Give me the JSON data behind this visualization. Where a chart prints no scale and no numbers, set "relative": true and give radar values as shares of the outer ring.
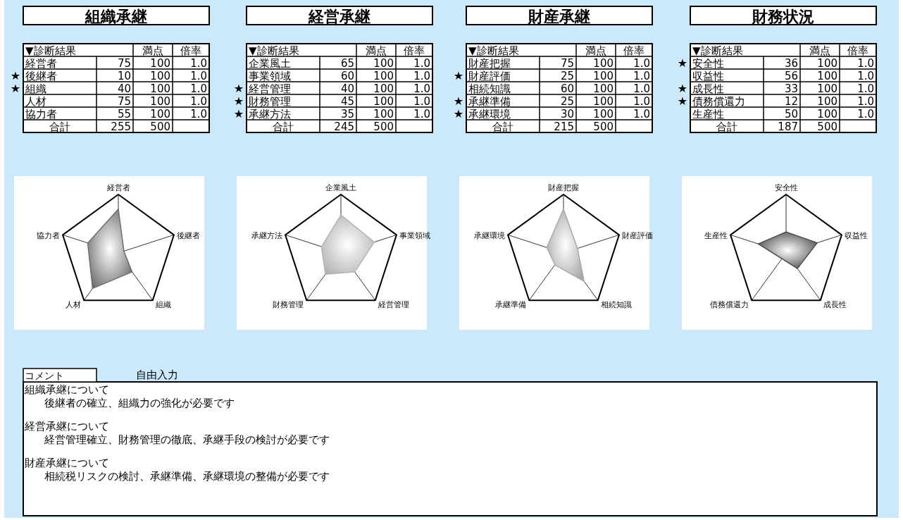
{
  "chart_data": [
    {
      "type": "radar",
      "title": "組織承継",
      "categories": [
        "経営者",
        "後継者",
        "組織",
        "人材",
        "協力者"
      ],
      "relative": true,
      "series": [
        {
          "color": "#6e6e6e",
          "values": [
            0.75,
            0.1,
            0.4,
            0.75,
            0.55
          ]
        }
      ],
      "annotations": [
        "▼診断結果",
        "満点",
        "倍率",
        "75",
        "100",
        "1.0",
        "10",
        "100",
        "1.0",
        "40",
        "100",
        "1.0",
        "75",
        "100",
        "1.0",
        "55",
        "100",
        "1.0",
        "合計",
        "255",
        "500",
        {
          "text": "★",
          "x": "後継者"
        },
        {
          "text": "★",
          "x": "組織"
        }
      ]
    },
    {
      "type": "radar",
      "title": "経営承継",
      "categories": [
        "企業風土",
        "事業領域",
        "経営管理",
        "財務管理",
        "承継方法"
      ],
      "relative": true,
      "series": [
        {
          "color": "#b4b4b4",
          "values": [
            0.65,
            0.6,
            0.4,
            0.45,
            0.35
          ]
        }
      ],
      "annotations": [
        "▼診断結果",
        "満点",
        "倍率",
        "65",
        "100",
        "1.0",
        "60",
        "100",
        "1.0",
        "40",
        "100",
        "1.0",
        "45",
        "100",
        "1.0",
        "35",
        "100",
        "1.0",
        "合計",
        "245",
        "500",
        {
          "text": "★",
          "x": "経営管理"
        },
        {
          "text": "★",
          "x": "財務管理"
        },
        {
          "text": "★",
          "x": "承継方法"
        }
      ]
    },
    {
      "type": "radar",
      "title": "財産承継",
      "categories": [
        "財産把握",
        "財産評価",
        "相続知識",
        "承継準備",
        "承継環境"
      ],
      "relative": true,
      "series": [
        {
          "color": "#a8a8a8",
          "values": [
            0.75,
            0.25,
            0.6,
            0.25,
            0.3
          ]
        }
      ],
      "annotations": [
        "▼診断結果",
        "満点",
        "倍率",
        "75",
        "100",
        "1.0",
        "25",
        "100",
        "1.0",
        "60",
        "100",
        "1.0",
        "25",
        "100",
        "1.0",
        "30",
        "100",
        "1.0",
        "合計",
        "215",
        "500",
        {
          "text": "★",
          "x": "財産評価"
        },
        {
          "text": "★",
          "x": "承継準備"
        },
        {
          "text": "★",
          "x": "承継環境"
        }
      ]
    },
    {
      "type": "radar",
      "title": "財務状況",
      "categories": [
        "安全性",
        "収益性",
        "成長性",
        "債務償還力",
        "生産性"
      ],
      "relative": true,
      "series": [
        {
          "color": "#4a4a4a",
          "values": [
            0.36,
            0.56,
            0.33,
            0.12,
            0.5
          ]
        }
      ],
      "annotations": [
        "▼診断結果",
        "満点",
        "倍率",
        "36",
        "100",
        "1.0",
        "56",
        "100",
        "1.0",
        "33",
        "100",
        "1.0",
        "12",
        "100",
        "1.0",
        "50",
        "100",
        "1.0",
        "合計",
        "187",
        "500",
        {
          "text": "★",
          "x": "安全性"
        },
        {
          "text": "★",
          "x": "成長性"
        },
        {
          "text": "★",
          "x": "債務償還力"
        }
      ]
    },
    {
      "type": "other",
      "title": "コメント",
      "subtitle": "自由入力",
      "annotations": [
        "組織承継について",
        "後継者の確立、組織力の強化が必要です",
        "経営承継について",
        "経営管理確立、財務管理の徹底、承継手段の検討が必要です",
        "財産承継について",
        "相続税リスクの検討、承継準備、承継環境の整備が必要です"
      ]
    }
  ]
}
